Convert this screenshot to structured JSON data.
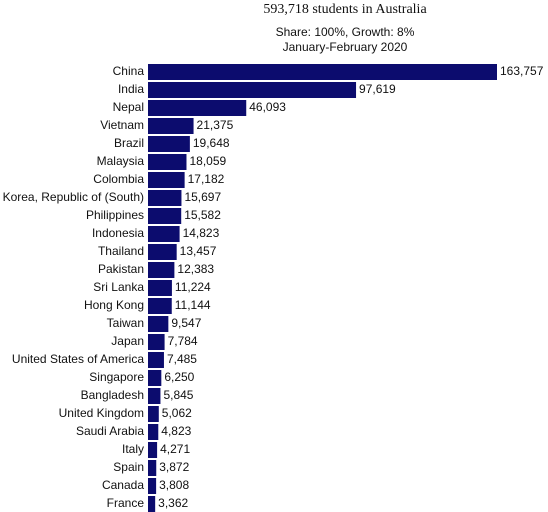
{
  "chart_data": {
    "type": "bar",
    "title": "593,718 students in Australia",
    "subtitle": [
      "Share: 100%, Growth: 8%",
      "January-February 2020"
    ],
    "categories": [
      "China",
      "India",
      "Nepal",
      "Vietnam",
      "Brazil",
      "Malaysia",
      "Colombia",
      "Korea, Republic of (South)",
      "Philippines",
      "Indonesia",
      "Thailand",
      "Pakistan",
      "Sri Lanka",
      "Hong Kong",
      "Taiwan",
      "Japan",
      "United States of America",
      "Singapore",
      "Bangladesh",
      "United Kingdom",
      "Saudi Arabia",
      "Italy",
      "Spain",
      "Canada",
      "France"
    ],
    "values": [
      163757,
      97619,
      46093,
      21375,
      19648,
      18059,
      17182,
      15697,
      15582,
      14823,
      13457,
      12383,
      11224,
      11144,
      9547,
      7784,
      7485,
      6250,
      5845,
      5062,
      4823,
      4271,
      3872,
      3808,
      3362
    ],
    "value_labels": [
      "163,757",
      "97,619",
      "46,093",
      "21,375",
      "19,648",
      "18,059",
      "17,182",
      "15,697",
      "15,582",
      "14,823",
      "13,457",
      "12,383",
      "11,224",
      "11,144",
      "9,547",
      "7,784",
      "7,485",
      "6,250",
      "5,845",
      "5,062",
      "4,823",
      "4,271",
      "3,872",
      "3,808",
      "3,362"
    ],
    "color": "#0c0c6e"
  }
}
